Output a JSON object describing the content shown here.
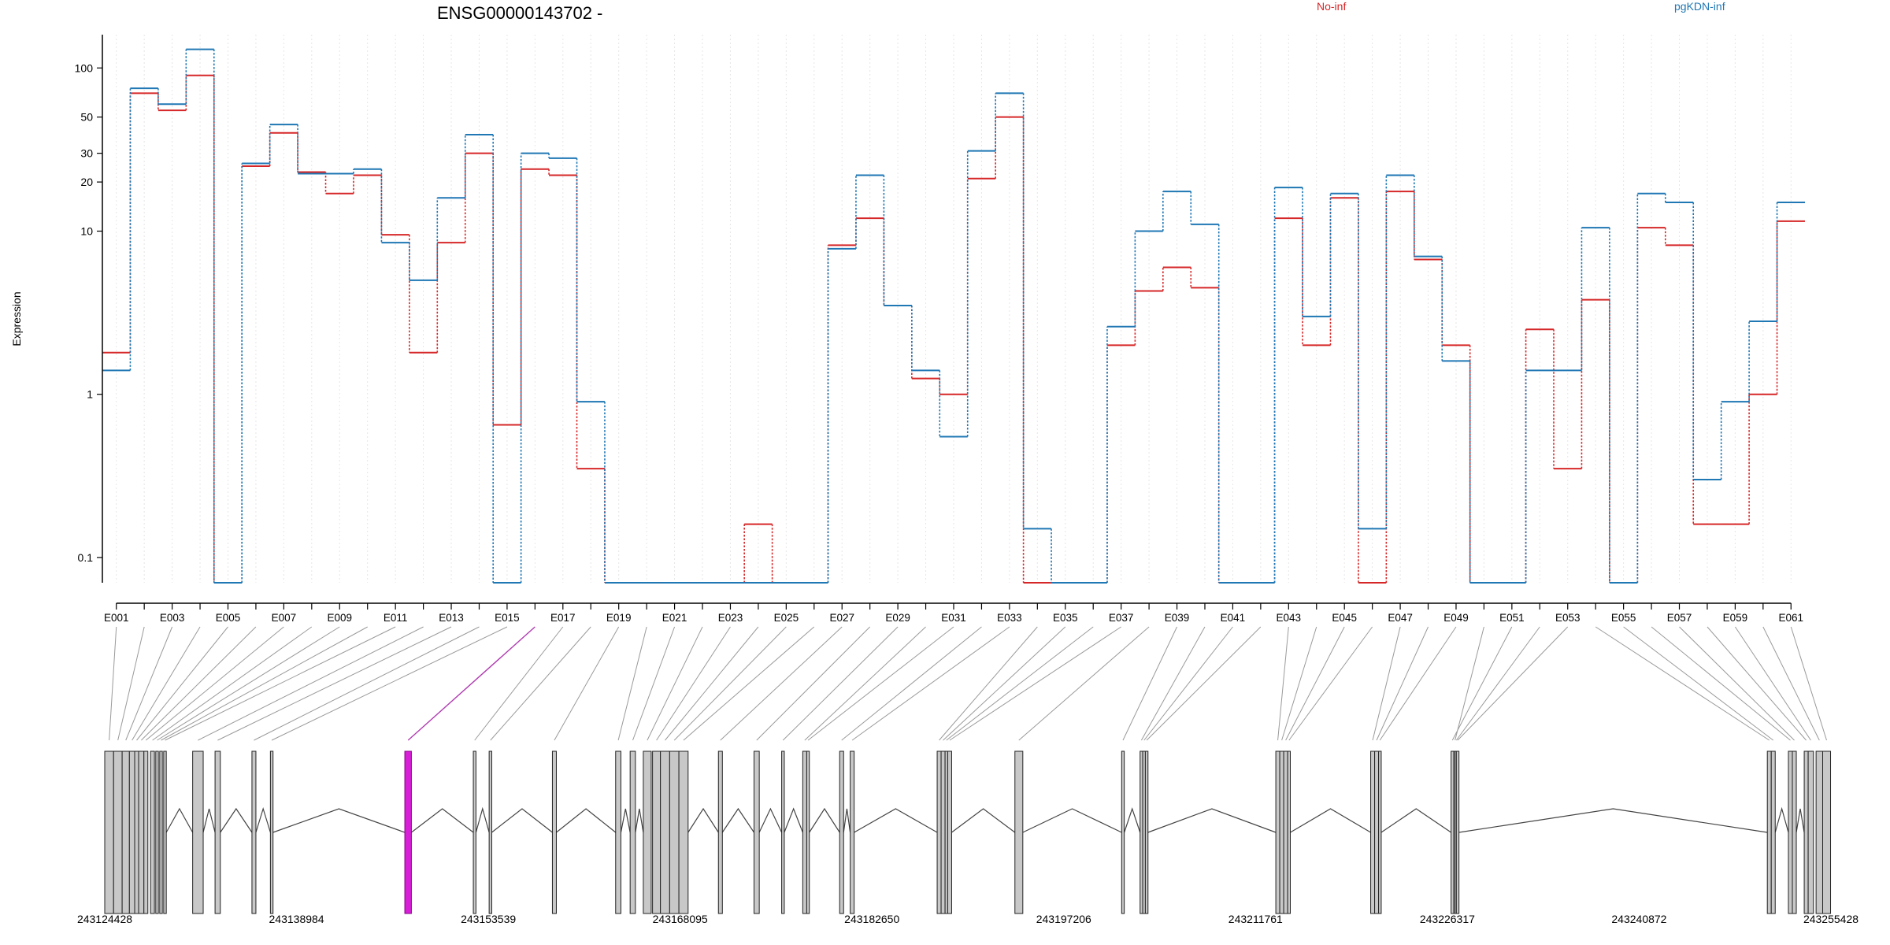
{
  "chart_data": {
    "type": "line",
    "title": "ENSG00000143702 -",
    "ylabel": "Expression",
    "yscale": "log",
    "ylim": [
      0.07,
      160
    ],
    "yticks": [
      0.1,
      1,
      10,
      20,
      30,
      50,
      100
    ],
    "ytick_labels": [
      "0.1",
      "1",
      "10",
      "20",
      "30",
      "50",
      "100"
    ],
    "grid": "vertical dotted at exon bins",
    "legend_placement": "top",
    "categories": [
      "E001",
      "E002",
      "E003",
      "E004",
      "E005",
      "E006",
      "E007",
      "E008",
      "E009",
      "E010",
      "E011",
      "E012",
      "E013",
      "E014",
      "E015",
      "E016",
      "E017",
      "E018",
      "E019",
      "E020",
      "E021",
      "E022",
      "E023",
      "E024",
      "E025",
      "E026",
      "E027",
      "E028",
      "E029",
      "E030",
      "E031",
      "E032",
      "E033",
      "E034",
      "E035",
      "E036",
      "E037",
      "E038",
      "E039",
      "E040",
      "E041",
      "E042",
      "E043",
      "E044",
      "E045",
      "E046",
      "E047",
      "E048",
      "E049",
      "E050",
      "E051",
      "E052",
      "E053",
      "E054",
      "E055",
      "E056",
      "E057",
      "E058",
      "E059",
      "E060",
      "E061"
    ],
    "series": [
      {
        "name": "No-inf",
        "color": "#d62728",
        "values": [
          1.8,
          70,
          55,
          90,
          0.07,
          25,
          40,
          23,
          17,
          22,
          9.5,
          1.8,
          8.5,
          30,
          0.65,
          24,
          22,
          0.35,
          0.07,
          0.07,
          0.07,
          0.07,
          0.07,
          0.16,
          0.07,
          0.07,
          8.2,
          12,
          3.5,
          1.25,
          1.0,
          21,
          50,
          0.07,
          0.07,
          0.07,
          2.0,
          4.3,
          6.0,
          4.5,
          0.07,
          0.07,
          12,
          2.0,
          16,
          0.07,
          17.5,
          6.7,
          2.0,
          0.07,
          0.07,
          2.5,
          0.35,
          3.8,
          0.07,
          10.5,
          8.2,
          0.16,
          0.16,
          1.0,
          11.5
        ]
      },
      {
        "name": "pgKDN-inf",
        "color": "#1f77b4",
        "values": [
          1.4,
          75,
          60,
          130,
          0.07,
          26,
          45,
          22.5,
          22.5,
          24,
          8.5,
          5.0,
          16,
          39,
          0.07,
          30,
          28,
          0.9,
          0.07,
          0.07,
          0.07,
          0.07,
          0.07,
          0.07,
          0.07,
          0.07,
          7.8,
          22,
          3.5,
          1.4,
          0.55,
          31,
          70,
          0.15,
          0.07,
          0.07,
          2.6,
          10,
          17.5,
          11,
          0.07,
          0.07,
          18.5,
          3.0,
          17,
          0.15,
          22,
          7.0,
          1.6,
          0.07,
          0.07,
          1.4,
          1.4,
          10.5,
          0.07,
          17,
          15,
          0.3,
          0.9,
          2.8,
          15
        ]
      }
    ],
    "gene_model": {
      "coordinate_ticks": [
        "243124428",
        "243138984",
        "243153539",
        "243168095",
        "243182650",
        "243197206",
        "243211761",
        "243226317",
        "243240872",
        "243255428"
      ],
      "coordinate_range": [
        243124428,
        243255428
      ],
      "highlighted_exon": "E016",
      "highlight_color": "#d61fd6",
      "exon_fill": "#c8c8c8",
      "exons_bp": [
        [
          243124428,
          243125100
        ],
        [
          243125100,
          243125750
        ],
        [
          243125750,
          243126300
        ],
        [
          243126300,
          243126700
        ],
        [
          243126700,
          243127000
        ],
        [
          243127000,
          243127400
        ],
        [
          243127400,
          243127700
        ],
        [
          243127900,
          243128200
        ],
        [
          243128300,
          243128500
        ],
        [
          243128600,
          243128800
        ],
        [
          243128900,
          243129100
        ],
        [
          243131100,
          243131900
        ],
        [
          243132800,
          243133200
        ],
        [
          243135600,
          243135900
        ],
        [
          243137000,
          243137200
        ],
        [
          243147200,
          243147700
        ],
        [
          243152400,
          243152600
        ],
        [
          243153600,
          243153800
        ],
        [
          243158400,
          243158700
        ],
        [
          243163200,
          243163600
        ],
        [
          243164300,
          243164700
        ],
        [
          243165300,
          243165900
        ],
        [
          243166000,
          243166600
        ],
        [
          243166600,
          243167300
        ],
        [
          243167300,
          243168000
        ],
        [
          243168000,
          243168700
        ],
        [
          243171000,
          243171300
        ],
        [
          243173700,
          243174100
        ],
        [
          243175800,
          243176000
        ],
        [
          243177400,
          243177700
        ],
        [
          243177700,
          243177900
        ],
        [
          243180200,
          243180500
        ],
        [
          243181000,
          243181300
        ],
        [
          243187600,
          243187900
        ],
        [
          243187900,
          243188200
        ],
        [
          243188200,
          243188400
        ],
        [
          243188400,
          243188700
        ],
        [
          243193500,
          243194100
        ],
        [
          243201600,
          243201800
        ],
        [
          243203000,
          243203200
        ],
        [
          243203200,
          243203400
        ],
        [
          243203400,
          243203600
        ],
        [
          243213300,
          243213600
        ],
        [
          243213600,
          243213900
        ],
        [
          243213900,
          243214200
        ],
        [
          243214200,
          243214400
        ],
        [
          243220500,
          243220800
        ],
        [
          243220800,
          243221100
        ],
        [
          243221100,
          243221300
        ],
        [
          243226800,
          243227000
        ],
        [
          243226600,
          243226800
        ],
        [
          243226900,
          243227100
        ],
        [
          243227000,
          243227200
        ],
        [
          243250600,
          243250900
        ],
        [
          243250900,
          243251200
        ],
        [
          243252200,
          243252500
        ],
        [
          243252500,
          243252800
        ],
        [
          243253400,
          243253700
        ],
        [
          243253700,
          243254100
        ],
        [
          243254300,
          243254800
        ],
        [
          243254800,
          243255400
        ]
      ]
    }
  }
}
